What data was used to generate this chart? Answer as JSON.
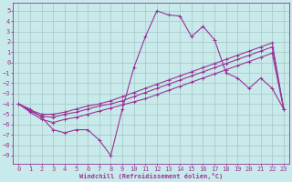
{
  "background_color": "#c8eaea",
  "grid_color": "#aacccc",
  "line_color": "#993399",
  "xlabel": "Windchill (Refroidissement éolien,°C)",
  "xlim": [
    -0.5,
    23.5
  ],
  "ylim": [
    -9.8,
    5.8
  ],
  "xticks": [
    0,
    1,
    2,
    3,
    4,
    5,
    6,
    7,
    8,
    9,
    10,
    11,
    12,
    13,
    14,
    15,
    16,
    17,
    18,
    19,
    20,
    21,
    22,
    23
  ],
  "yticks": [
    5,
    4,
    3,
    2,
    1,
    0,
    -1,
    -2,
    -3,
    -4,
    -5,
    -6,
    -7,
    -8,
    -9
  ],
  "line1_x": [
    0,
    1,
    2,
    3,
    4,
    5,
    6,
    7,
    8,
    9,
    10,
    11,
    12,
    13,
    14,
    15,
    16,
    17,
    18,
    19,
    20,
    21,
    22,
    23
  ],
  "line1_y": [
    -4.0,
    -4.5,
    -5.3,
    -6.5,
    -6.8,
    -6.5,
    -6.5,
    -7.5,
    -9.0,
    -4.5,
    -0.5,
    2.5,
    5.0,
    4.6,
    4.5,
    2.5,
    3.5,
    2.2,
    -1.0,
    -1.5,
    -2.5,
    -1.5,
    -2.5,
    -4.5
  ],
  "line2_x": [
    0,
    1,
    2,
    3,
    4,
    5,
    6,
    7,
    8,
    9,
    10,
    11,
    12,
    13,
    14,
    15,
    16,
    17,
    18,
    19,
    20,
    21,
    22,
    23
  ],
  "line2_y": [
    -4.0,
    -4.8,
    -5.5,
    -5.8,
    -5.5,
    -5.3,
    -5.0,
    -4.7,
    -4.4,
    -4.1,
    -3.8,
    -3.5,
    -3.1,
    -2.7,
    -2.3,
    -1.9,
    -1.5,
    -1.1,
    -0.7,
    -0.3,
    0.1,
    0.5,
    0.9,
    -4.5
  ],
  "line3_x": [
    0,
    1,
    2,
    3,
    4,
    5,
    6,
    7,
    8,
    9,
    10,
    11,
    12,
    13,
    14,
    15,
    16,
    17,
    18,
    19,
    20,
    21,
    22,
    23
  ],
  "line3_y": [
    -4.0,
    -4.7,
    -5.2,
    -5.3,
    -5.0,
    -4.8,
    -4.5,
    -4.2,
    -4.0,
    -3.7,
    -3.3,
    -2.9,
    -2.5,
    -2.1,
    -1.7,
    -1.3,
    -0.9,
    -0.5,
    -0.1,
    0.3,
    0.7,
    1.1,
    1.5,
    -4.5
  ],
  "line4_x": [
    0,
    1,
    2,
    3,
    4,
    5,
    6,
    7,
    8,
    9,
    10,
    11,
    12,
    13,
    14,
    15,
    16,
    17,
    18,
    19,
    20,
    21,
    22,
    23
  ],
  "line4_y": [
    -4.0,
    -4.6,
    -5.0,
    -5.0,
    -4.8,
    -4.5,
    -4.2,
    -4.0,
    -3.7,
    -3.3,
    -2.9,
    -2.5,
    -2.1,
    -1.7,
    -1.3,
    -0.9,
    -0.5,
    -0.1,
    0.3,
    0.7,
    1.1,
    1.5,
    1.9,
    -4.5
  ],
  "font_size": 5,
  "tick_font_size": 5
}
